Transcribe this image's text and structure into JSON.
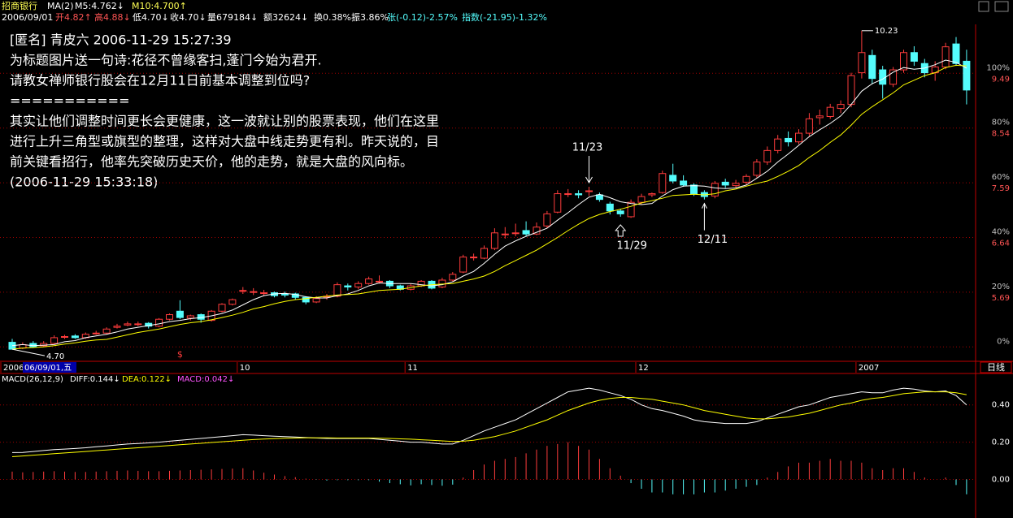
{
  "header": {
    "stock": "招商银行",
    "ma": "MA(2)",
    "m5": "M5:4.762↓",
    "m10": "M10:4.700↑",
    "date": "2006/09/01",
    "open": "开4.82↑",
    "high": "高4.88↓",
    "low": "低4.70↓",
    "close": "收4.70↓",
    "volume": "量679184↓",
    "amount": "额32624↓",
    "turnover": "换0.38%",
    "amplitude": "振3.86%",
    "change": "张(-0.12)-2.57%",
    "index": "指数(-21.95)-1.32%"
  },
  "post": [
    "[匿名] 青皮六 2006-11-29 15:27:39",
    "为标题图片送一句诗:花径不曾缘客扫,蓬门今始为君开.",
    "请教女禅师银行股会在12月11日前基本调整到位吗?",
    "===========",
    "其实让他们调整时间更长会更健康，这一波就让别的股票表现，他们在这里",
    "进行上升三角型或旗型的整理，这样对大盘中线走势更有利。昨天说的，目",
    "前关键看招行，他率先突破历史天价，他的走势，就是大盘的风向标。",
    "(2006-11-29 15:33:18)"
  ],
  "chart_data": [
    {
      "type": "candlestick",
      "up_color": "#ff3c3c",
      "down_color": "#54fcfc",
      "categories": [
        "2006",
        null,
        null,
        null,
        null,
        null,
        null,
        null,
        null,
        null,
        null,
        null,
        null,
        null,
        null,
        null,
        null,
        null,
        null,
        null,
        null,
        null,
        "10",
        null,
        null,
        null,
        null,
        null,
        null,
        null,
        null,
        null,
        null,
        null,
        null,
        null,
        null,
        null,
        "11",
        null,
        null,
        null,
        null,
        null,
        null,
        null,
        null,
        null,
        null,
        null,
        null,
        null,
        null,
        null,
        null,
        null,
        null,
        null,
        null,
        null,
        "12",
        null,
        null,
        null,
        null,
        null,
        null,
        null,
        null,
        null,
        null,
        null,
        null,
        null,
        null,
        null,
        null,
        null,
        null,
        null,
        null,
        "2007",
        null,
        null,
        null,
        null,
        null,
        null,
        null,
        null,
        null,
        null
      ],
      "values": [
        [
          4.82,
          4.88,
          4.7,
          4.7
        ],
        [
          4.72,
          4.82,
          4.7,
          4.78
        ],
        [
          4.8,
          4.84,
          4.72,
          4.74
        ],
        [
          4.76,
          4.84,
          4.74,
          4.8
        ],
        [
          4.8,
          4.94,
          4.78,
          4.9
        ],
        [
          4.91,
          4.95,
          4.88,
          4.92
        ],
        [
          4.93,
          4.96,
          4.88,
          4.9
        ],
        [
          4.9,
          4.99,
          4.88,
          4.96
        ],
        [
          4.97,
          5.02,
          4.95,
          4.98
        ],
        [
          4.98,
          5.08,
          4.96,
          5.05
        ],
        [
          5.08,
          5.14,
          5.06,
          5.1
        ],
        [
          5.12,
          5.18,
          5.1,
          5.14
        ],
        [
          5.13,
          5.18,
          5.1,
          5.14
        ],
        [
          5.15,
          5.17,
          5.06,
          5.1
        ],
        [
          5.1,
          5.24,
          5.08,
          5.22
        ],
        [
          5.22,
          5.32,
          5.2,
          5.3
        ],
        [
          5.36,
          5.55,
          5.22,
          5.25
        ],
        [
          5.24,
          5.3,
          5.2,
          5.28
        ],
        [
          5.3,
          5.32,
          5.16,
          5.22
        ],
        [
          5.2,
          5.38,
          5.18,
          5.36
        ],
        [
          5.36,
          5.5,
          5.34,
          5.48
        ],
        [
          5.48,
          5.58,
          5.46,
          5.56
        ],
        [
          5.72,
          5.78,
          5.66,
          5.72
        ],
        [
          5.7,
          5.76,
          5.64,
          5.7
        ],
        [
          5.68,
          5.73,
          5.62,
          5.68
        ],
        [
          5.68,
          5.7,
          5.6,
          5.63
        ],
        [
          5.66,
          5.7,
          5.6,
          5.64
        ],
        [
          5.66,
          5.68,
          5.56,
          5.6
        ],
        [
          5.6,
          5.62,
          5.48,
          5.52
        ],
        [
          5.52,
          5.62,
          5.5,
          5.58
        ],
        [
          5.62,
          5.66,
          5.56,
          5.62
        ],
        [
          5.62,
          5.86,
          5.6,
          5.82
        ],
        [
          5.8,
          5.84,
          5.72,
          5.78
        ],
        [
          5.78,
          5.88,
          5.74,
          5.84
        ],
        [
          5.84,
          5.96,
          5.82,
          5.92
        ],
        [
          5.88,
          5.98,
          5.84,
          5.88
        ],
        [
          5.88,
          5.9,
          5.76,
          5.8
        ],
        [
          5.8,
          5.82,
          5.72,
          5.74
        ],
        [
          5.74,
          5.84,
          5.72,
          5.8
        ],
        [
          5.8,
          5.9,
          5.78,
          5.88
        ],
        [
          5.88,
          5.9,
          5.74,
          5.76
        ],
        [
          5.78,
          5.94,
          5.76,
          5.9
        ],
        [
          5.9,
          6.04,
          5.88,
          6.0
        ],
        [
          6.04,
          6.34,
          6.02,
          6.3
        ],
        [
          6.3,
          6.36,
          6.24,
          6.3
        ],
        [
          6.28,
          6.5,
          6.26,
          6.45
        ],
        [
          6.45,
          6.8,
          6.42,
          6.72
        ],
        [
          6.7,
          6.82,
          6.62,
          6.7
        ],
        [
          6.72,
          6.88,
          6.66,
          6.72
        ],
        [
          6.76,
          6.92,
          6.66,
          6.7
        ],
        [
          6.7,
          6.9,
          6.68,
          6.82
        ],
        [
          6.84,
          7.1,
          6.8,
          7.05
        ],
        [
          7.08,
          7.46,
          7.06,
          7.4
        ],
        [
          7.4,
          7.48,
          7.34,
          7.4
        ],
        [
          7.4,
          7.46,
          7.32,
          7.38
        ],
        [
          7.44,
          7.52,
          7.36,
          7.45
        ],
        [
          7.38,
          7.42,
          7.26,
          7.3
        ],
        [
          7.22,
          7.26,
          7.04,
          7.1
        ],
        [
          7.1,
          7.14,
          7.0,
          7.05
        ],
        [
          7.0,
          7.3,
          6.98,
          7.25
        ],
        [
          7.25,
          7.4,
          7.22,
          7.35
        ],
        [
          7.38,
          7.42,
          7.34,
          7.4
        ],
        [
          7.42,
          7.8,
          7.4,
          7.75
        ],
        [
          7.72,
          7.92,
          7.58,
          7.62
        ],
        [
          7.62,
          7.72,
          7.52,
          7.55
        ],
        [
          7.55,
          7.58,
          7.36,
          7.4
        ],
        [
          7.42,
          7.46,
          7.3,
          7.35
        ],
        [
          7.36,
          7.62,
          7.32,
          7.58
        ],
        [
          7.6,
          7.66,
          7.5,
          7.55
        ],
        [
          7.54,
          7.64,
          7.5,
          7.58
        ],
        [
          7.6,
          7.74,
          7.56,
          7.7
        ],
        [
          7.72,
          8.0,
          7.68,
          7.95
        ],
        [
          7.95,
          8.22,
          7.9,
          8.15
        ],
        [
          8.15,
          8.42,
          8.1,
          8.35
        ],
        [
          8.36,
          8.48,
          8.22,
          8.3
        ],
        [
          8.3,
          8.52,
          8.26,
          8.45
        ],
        [
          8.45,
          8.8,
          8.4,
          8.7
        ],
        [
          8.72,
          8.86,
          8.6,
          8.75
        ],
        [
          8.74,
          8.96,
          8.7,
          8.9
        ],
        [
          8.88,
          9.02,
          8.8,
          8.95
        ],
        [
          8.95,
          9.5,
          8.9,
          9.45
        ],
        [
          9.5,
          10.23,
          9.4,
          9.85
        ],
        [
          9.8,
          9.9,
          9.3,
          9.4
        ],
        [
          9.55,
          9.62,
          9.05,
          9.3
        ],
        [
          9.3,
          9.6,
          9.25,
          9.55
        ],
        [
          9.55,
          9.9,
          9.5,
          9.85
        ],
        [
          9.85,
          9.96,
          9.62,
          9.7
        ],
        [
          9.66,
          9.74,
          9.42,
          9.5
        ],
        [
          9.5,
          9.7,
          9.36,
          9.6
        ],
        [
          9.6,
          10.02,
          9.56,
          9.95
        ],
        [
          10.0,
          10.12,
          9.62,
          9.66
        ],
        [
          9.7,
          9.9,
          8.95,
          9.2
        ]
      ],
      "series": [
        {
          "name": "M5",
          "color": "#ffffff",
          "values": [
            4.762,
            4.78,
            4.76,
            4.77,
            4.78,
            4.83,
            4.85,
            4.9,
            4.93,
            4.96,
            5.0,
            5.05,
            5.08,
            5.11,
            5.14,
            5.18,
            5.2,
            5.23,
            5.25,
            5.28,
            5.32,
            5.38,
            5.47,
            5.56,
            5.63,
            5.66,
            5.67,
            5.65,
            5.61,
            5.59,
            5.59,
            5.63,
            5.66,
            5.72,
            5.8,
            5.85,
            5.84,
            5.84,
            5.84,
            5.82,
            5.8,
            5.82,
            5.87,
            5.97,
            6.05,
            6.19,
            6.35,
            6.49,
            6.58,
            6.66,
            6.73,
            6.8,
            6.94,
            7.07,
            7.21,
            7.34,
            7.39,
            7.33,
            7.26,
            7.23,
            7.21,
            7.23,
            7.36,
            7.47,
            7.53,
            7.54,
            7.53,
            7.5,
            7.49,
            7.5,
            7.55,
            7.67,
            7.79,
            7.95,
            8.09,
            8.24,
            8.39,
            8.51,
            8.62,
            8.75,
            8.95,
            9.18,
            9.31,
            9.39,
            9.51,
            9.59,
            9.56,
            9.58,
            9.64,
            9.72,
            9.68,
            9.58
          ]
        },
        {
          "name": "M10",
          "color": "#ffff00",
          "values": [
            4.7,
            4.72,
            4.73,
            4.74,
            4.76,
            4.79,
            4.81,
            4.84,
            4.86,
            4.87,
            4.91,
            4.95,
            4.99,
            5.02,
            5.05,
            5.09,
            5.13,
            5.16,
            5.18,
            5.21,
            5.25,
            5.29,
            5.34,
            5.4,
            5.44,
            5.49,
            5.53,
            5.56,
            5.58,
            5.6,
            5.62,
            5.64,
            5.65,
            5.66,
            5.69,
            5.72,
            5.73,
            5.74,
            5.77,
            5.8,
            5.82,
            5.83,
            5.84,
            5.88,
            5.92,
            5.97,
            6.05,
            6.15,
            6.24,
            6.33,
            6.42,
            6.53,
            6.64,
            6.76,
            6.87,
            6.97,
            7.04,
            7.09,
            7.13,
            7.18,
            7.24,
            7.28,
            7.32,
            7.37,
            7.38,
            7.39,
            7.38,
            7.4,
            7.45,
            7.48,
            7.53,
            7.58,
            7.62,
            7.7,
            7.79,
            7.89,
            8.03,
            8.15,
            8.29,
            8.42,
            8.59,
            8.78,
            8.91,
            9.03,
            9.15,
            9.29,
            9.37,
            9.45,
            9.5,
            9.59,
            9.63,
            9.62
          ]
        }
      ],
      "ylim": [
        4.49,
        10.34
      ],
      "yticks": [
        {
          "value": 4.74,
          "label": "0%"
        },
        {
          "value": 5.69,
          "label": "20%"
        },
        {
          "value": 6.64,
          "label": "40%"
        },
        {
          "value": 7.59,
          "label": "60%"
        },
        {
          "value": 8.54,
          "label": "80%"
        },
        {
          "value": 9.49,
          "label": "100%"
        }
      ],
      "grid": true,
      "low_label": "4.70",
      "annotations": [
        "11/23",
        "11/29",
        "12/11"
      ],
      "marker": "$",
      "cursor_date": "06/09/01,五",
      "period": "日线"
    },
    {
      "type": "macd",
      "title": "MACD(26,12,9)",
      "legend": [
        "DIFF:0.144↓",
        "DEA:0.122↓",
        "MACD:0.042↓"
      ],
      "series": [
        {
          "name": "DIFF",
          "color": "#ffffff",
          "values": [
            0.144,
            0.145,
            0.15,
            0.155,
            0.16,
            0.163,
            0.166,
            0.17,
            0.175,
            0.18,
            0.185,
            0.19,
            0.193,
            0.196,
            0.2,
            0.205,
            0.21,
            0.215,
            0.22,
            0.225,
            0.23,
            0.235,
            0.24,
            0.238,
            0.235,
            0.232,
            0.23,
            0.228,
            0.225,
            0.222,
            0.22,
            0.22,
            0.22,
            0.22,
            0.22,
            0.215,
            0.21,
            0.205,
            0.2,
            0.2,
            0.195,
            0.19,
            0.19,
            0.21,
            0.235,
            0.26,
            0.28,
            0.3,
            0.32,
            0.35,
            0.38,
            0.41,
            0.44,
            0.47,
            0.48,
            0.49,
            0.48,
            0.465,
            0.45,
            0.43,
            0.4,
            0.38,
            0.37,
            0.355,
            0.34,
            0.32,
            0.31,
            0.305,
            0.3,
            0.3,
            0.3,
            0.31,
            0.33,
            0.35,
            0.37,
            0.39,
            0.4,
            0.42,
            0.44,
            0.45,
            0.46,
            0.47,
            0.465,
            0.465,
            0.48,
            0.49,
            0.485,
            0.475,
            0.47,
            0.475,
            0.45,
            0.4
          ]
        },
        {
          "name": "DEA",
          "color": "#ffff00",
          "values": [
            0.122,
            0.126,
            0.13,
            0.134,
            0.138,
            0.142,
            0.146,
            0.15,
            0.154,
            0.158,
            0.162,
            0.166,
            0.17,
            0.174,
            0.178,
            0.182,
            0.186,
            0.19,
            0.194,
            0.198,
            0.202,
            0.206,
            0.21,
            0.214,
            0.217,
            0.219,
            0.221,
            0.222,
            0.223,
            0.223,
            0.223,
            0.222,
            0.222,
            0.222,
            0.222,
            0.221,
            0.22,
            0.218,
            0.216,
            0.213,
            0.21,
            0.207,
            0.204,
            0.205,
            0.21,
            0.22,
            0.23,
            0.245,
            0.26,
            0.28,
            0.3,
            0.32,
            0.345,
            0.37,
            0.39,
            0.41,
            0.425,
            0.435,
            0.44,
            0.44,
            0.435,
            0.43,
            0.42,
            0.41,
            0.4,
            0.385,
            0.37,
            0.36,
            0.35,
            0.34,
            0.33,
            0.325,
            0.325,
            0.33,
            0.335,
            0.345,
            0.355,
            0.37,
            0.385,
            0.4,
            0.41,
            0.425,
            0.435,
            0.44,
            0.45,
            0.46,
            0.465,
            0.47,
            0.47,
            0.47,
            0.465,
            0.455
          ]
        }
      ],
      "bars": {
        "name": "MACD",
        "values": [
          0.042,
          0.038,
          0.04,
          0.042,
          0.044,
          0.042,
          0.04,
          0.04,
          0.042,
          0.044,
          0.046,
          0.048,
          0.046,
          0.044,
          0.044,
          0.046,
          0.048,
          0.05,
          0.052,
          0.054,
          0.056,
          0.058,
          0.06,
          0.048,
          0.036,
          0.026,
          0.018,
          0.012,
          0.004,
          -0.002,
          -0.006,
          -0.004,
          -0.004,
          -0.004,
          -0.004,
          -0.012,
          -0.02,
          -0.026,
          -0.032,
          -0.026,
          -0.03,
          -0.034,
          -0.028,
          0.01,
          0.05,
          0.08,
          0.1,
          0.11,
          0.12,
          0.14,
          0.16,
          0.18,
          0.19,
          0.2,
          0.18,
          0.16,
          0.11,
          0.06,
          0.02,
          -0.02,
          -0.05,
          -0.07,
          -0.07,
          -0.08,
          -0.08,
          -0.08,
          -0.07,
          -0.07,
          -0.06,
          -0.05,
          -0.04,
          -0.03,
          0.01,
          0.04,
          0.07,
          0.09,
          0.09,
          0.1,
          0.11,
          0.1,
          0.1,
          0.09,
          0.06,
          0.05,
          0.06,
          0.06,
          0.04,
          0.01,
          0.0,
          0.01,
          -0.03,
          -0.08
        ],
        "up_color": "#ff3c3c",
        "down_color": "#54fcfc"
      },
      "ylim": [
        -0.12,
        0.56
      ],
      "yticks": [
        {
          "value": 0.4,
          "label": "0.40"
        },
        {
          "value": 0.2,
          "label": "0.20"
        },
        {
          "value": 0,
          "label": "0.00"
        }
      ],
      "grid": true
    }
  ]
}
